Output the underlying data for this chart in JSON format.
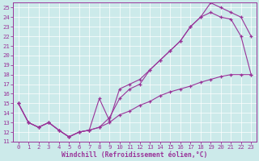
{
  "xlabel": "Windchill (Refroidissement éolien,°C)",
  "bg_color": "#cceaea",
  "line_color": "#993399",
  "xlim": [
    -0.5,
    23.5
  ],
  "ylim": [
    11,
    25.5
  ],
  "yticks": [
    11,
    12,
    13,
    14,
    15,
    16,
    17,
    18,
    19,
    20,
    21,
    22,
    23,
    24,
    25
  ],
  "xticks": [
    0,
    1,
    2,
    3,
    4,
    5,
    6,
    7,
    8,
    9,
    10,
    11,
    12,
    13,
    14,
    15,
    16,
    17,
    18,
    19,
    20,
    21,
    22,
    23
  ],
  "curve1_x": [
    0,
    1,
    2,
    3,
    4,
    5,
    6,
    7,
    8,
    9,
    10,
    11,
    12,
    13,
    14,
    15,
    16,
    17,
    18,
    19,
    20,
    21,
    22,
    23
  ],
  "curve1_y": [
    15.0,
    13.0,
    12.5,
    13.0,
    12.2,
    11.5,
    12.0,
    12.2,
    12.5,
    13.5,
    15.5,
    16.5,
    17.0,
    18.5,
    19.5,
    20.5,
    21.5,
    23.0,
    24.0,
    24.5,
    24.0,
    23.8,
    22.0,
    18.0
  ],
  "curve2_x": [
    0,
    1,
    2,
    3,
    4,
    5,
    6,
    7,
    8,
    9,
    10,
    11,
    12,
    13,
    14,
    15,
    16,
    17,
    18,
    19,
    20,
    21,
    22,
    23
  ],
  "curve2_y": [
    15.0,
    13.0,
    12.5,
    13.0,
    12.2,
    11.5,
    12.0,
    12.2,
    15.5,
    13.2,
    16.5,
    17.0,
    17.5,
    18.5,
    19.5,
    20.5,
    21.5,
    23.0,
    24.0,
    25.5,
    25.0,
    24.5,
    24.0,
    22.0
  ],
  "curve3_x": [
    0,
    1,
    2,
    3,
    4,
    5,
    6,
    7,
    8,
    9,
    10,
    11,
    12,
    13,
    14,
    15,
    16,
    17,
    18,
    19,
    20,
    21,
    22,
    23
  ],
  "curve3_y": [
    15.0,
    13.0,
    12.5,
    13.0,
    12.2,
    11.5,
    12.0,
    12.2,
    12.5,
    13.0,
    13.8,
    14.2,
    14.8,
    15.2,
    15.8,
    16.2,
    16.5,
    16.8,
    17.2,
    17.5,
    17.8,
    18.0,
    18.0,
    18.0
  ]
}
